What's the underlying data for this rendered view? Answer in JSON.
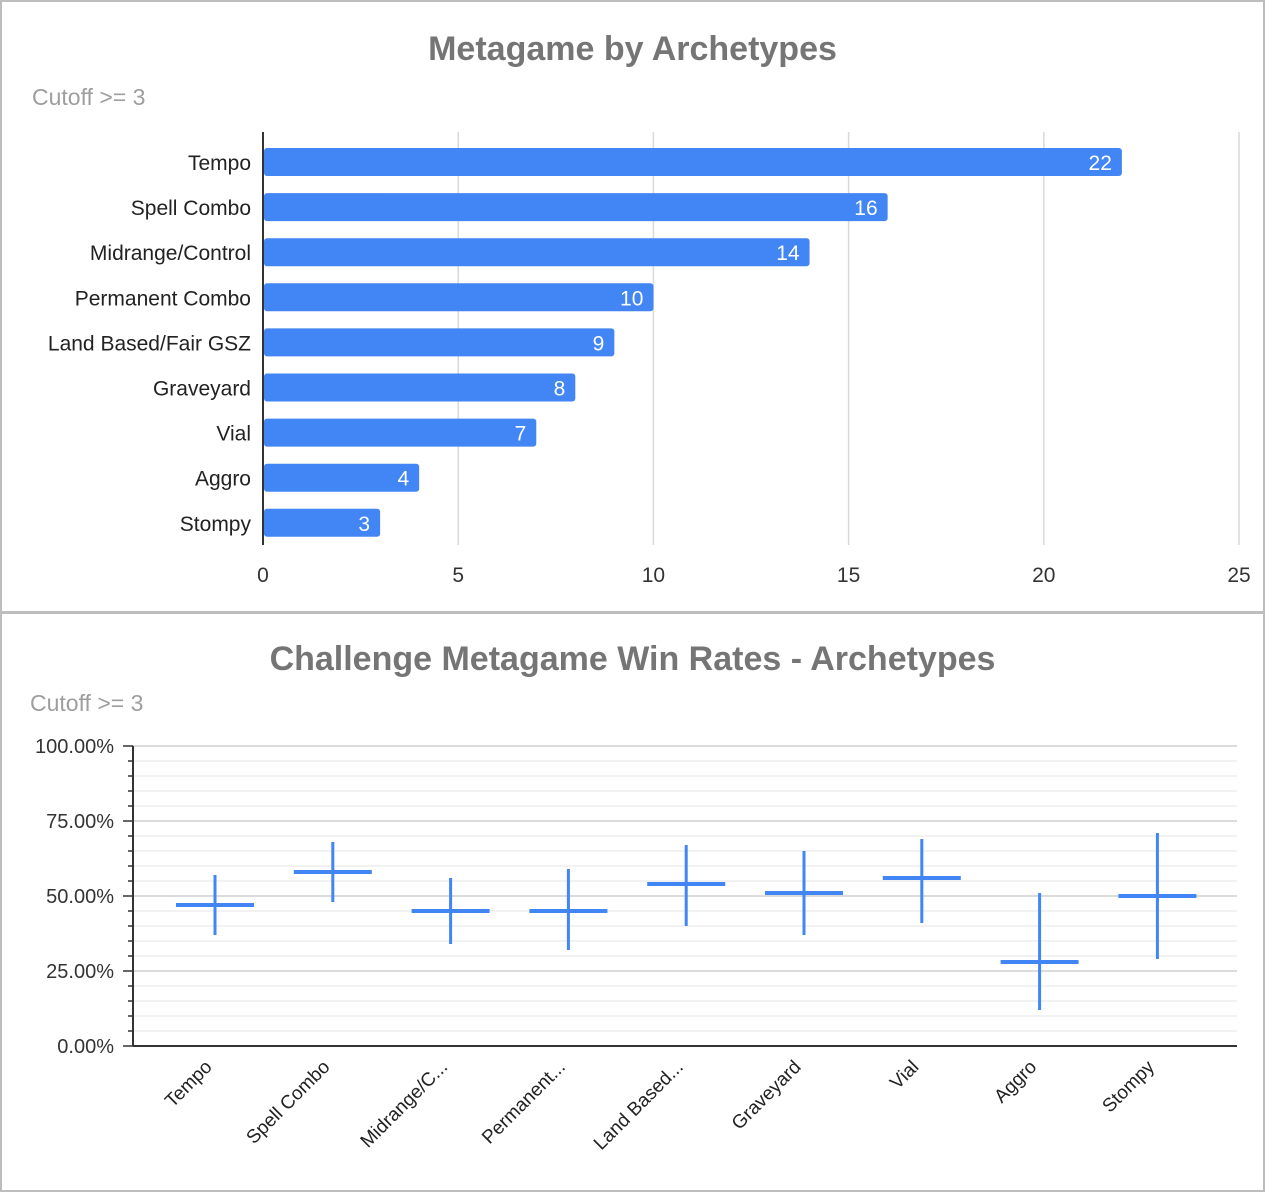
{
  "charts": [
    {
      "title": "Metagame by Archetypes",
      "subtitle": "Cutoff >= 3"
    },
    {
      "title": "Challenge Metagame Win Rates - Archetypes",
      "subtitle": "Cutoff >= 3"
    }
  ],
  "colors": {
    "series": "#4285f4",
    "grid": "#d9d9d9",
    "axis": "#333333",
    "title": "#757575",
    "subtitle": "#9e9e9e",
    "border": "#bdbdbd"
  },
  "chart_data": [
    {
      "type": "bar",
      "orientation": "horizontal",
      "title": "Metagame by Archetypes",
      "subtitle": "Cutoff >= 3",
      "categories": [
        "Tempo",
        "Spell Combo",
        "Midrange/Control",
        "Permanent Combo",
        "Land Based/Fair GSZ",
        "Graveyard",
        "Vial",
        "Aggro",
        "Stompy"
      ],
      "values": [
        22,
        16,
        14,
        10,
        9,
        8,
        7,
        4,
        3
      ],
      "data_labels": true,
      "xlim": [
        0,
        25
      ],
      "xticks": [
        0,
        5,
        10,
        15,
        20,
        25
      ],
      "grid": true,
      "legend": "none"
    },
    {
      "type": "candlestick",
      "title": "Challenge Metagame Win Rates - Archetypes",
      "subtitle": "Cutoff >= 3",
      "categories": [
        "Tempo",
        "Spell Combo",
        "Midrange/C...",
        "Permanent...",
        "Land Based...",
        "Graveyard",
        "Vial",
        "Aggro",
        "Stompy"
      ],
      "low": [
        37,
        48,
        34,
        32,
        40,
        37,
        41,
        12,
        29
      ],
      "mid": [
        47,
        58,
        45,
        45,
        54,
        51,
        56,
        28,
        50
      ],
      "high": [
        57,
        68,
        56,
        59,
        67,
        65,
        69,
        51,
        71
      ],
      "ylim": [
        0,
        100
      ],
      "yticks": [
        "0.00%",
        "25.00%",
        "50.00%",
        "75.00%",
        "100.00%"
      ],
      "grid": true,
      "legend": "none"
    }
  ]
}
